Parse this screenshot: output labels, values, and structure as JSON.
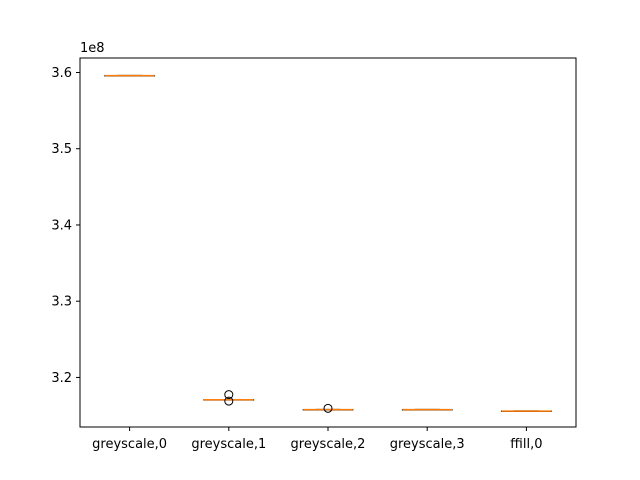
{
  "chart_data": {
    "type": "box",
    "categories": [
      "greyscale,0",
      "greyscale,1",
      "greyscale,2",
      "greyscale,3",
      "ffill,0"
    ],
    "offset_label": "1e8",
    "ylim": [
      3.135,
      3.619
    ],
    "yticks": [
      3.2,
      3.3,
      3.4,
      3.5,
      3.6
    ],
    "ytick_labels": [
      "3.2",
      "3.3",
      "3.4",
      "3.5",
      "3.6"
    ],
    "grid": false,
    "boxes": [
      {
        "name": "greyscale,0",
        "whislo": 3.5955,
        "q1": 3.5958,
        "median": 3.5959,
        "q3": 3.596,
        "whishi": 3.5962,
        "fliers": []
      },
      {
        "name": "greyscale,1",
        "whislo": 3.1705,
        "q1": 3.1707,
        "median": 3.1708,
        "q3": 3.1709,
        "whishi": 3.1711,
        "fliers": [
          3.1775,
          3.169
        ]
      },
      {
        "name": "greyscale,2",
        "whislo": 3.1575,
        "q1": 3.1577,
        "median": 3.1578,
        "q3": 3.1579,
        "whishi": 3.1581,
        "fliers": [
          3.1595
        ]
      },
      {
        "name": "greyscale,3",
        "whislo": 3.1575,
        "q1": 3.1577,
        "median": 3.1578,
        "q3": 3.1579,
        "whishi": 3.1581,
        "fliers": []
      },
      {
        "name": "ffill,0",
        "whislo": 3.1556,
        "q1": 3.1558,
        "median": 3.1559,
        "q3": 3.156,
        "whishi": 3.1562,
        "fliers": []
      }
    ],
    "colors": {
      "box": "#000000",
      "median": "#ff7f0e",
      "flier": "#000000",
      "axes": "#000000"
    }
  }
}
